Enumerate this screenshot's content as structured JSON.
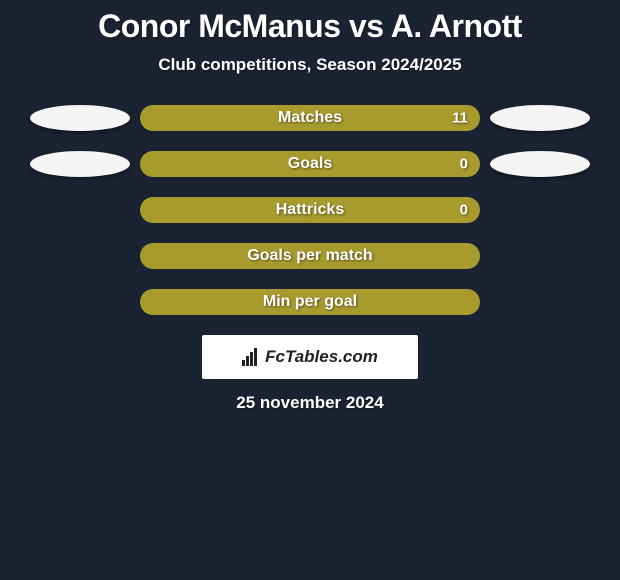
{
  "title": "Conor McManus vs A. Arnott",
  "subtitle": "Club competitions, Season 2024/2025",
  "bar_color": "#a89b2e",
  "avatar_left_color": "#f5f5f5",
  "avatar_right_color": "#f5f5f5",
  "stats": [
    {
      "label": "Matches",
      "value": "11",
      "show_avatars": true
    },
    {
      "label": "Goals",
      "value": "0",
      "show_avatars": true
    },
    {
      "label": "Hattricks",
      "value": "0",
      "show_avatars": false
    },
    {
      "label": "Goals per match",
      "value": "",
      "show_avatars": false
    },
    {
      "label": "Min per goal",
      "value": "",
      "show_avatars": false
    }
  ],
  "logo_text": "FcTables.com",
  "date": "25 november 2024"
}
